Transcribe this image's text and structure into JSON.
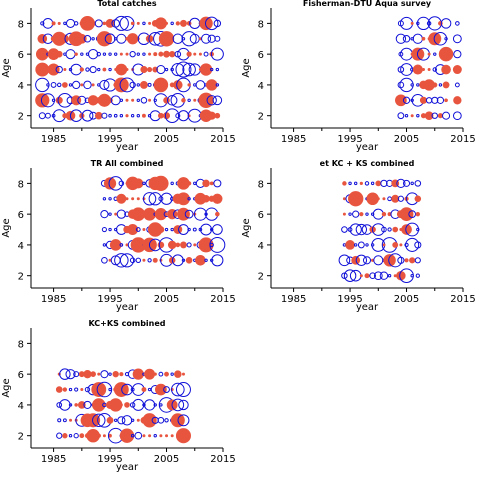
{
  "colors": {
    "positive": "#e8553f",
    "negative": "#1010d8",
    "axis": "#000000"
  },
  "chart_data": [
    {
      "type": "scatter",
      "subtype": "bubble-residuals",
      "title": "Total catches",
      "xlabel": "year",
      "ylabel": "Age",
      "xlim": [
        1981,
        2015
      ],
      "ylim": [
        1.2,
        9.0
      ],
      "xticks": [
        1985,
        1995,
        2005,
        2015
      ],
      "yticks": [
        2,
        4,
        6,
        8
      ],
      "years": [
        1983,
        2014
      ],
      "ages": [
        2,
        8
      ],
      "seed": 11
    },
    {
      "type": "scatter",
      "subtype": "bubble-residuals",
      "title": "Fisherman-DTU Aqua survey",
      "xlabel": "year",
      "ylabel": "Age",
      "xlim": [
        1981,
        2015
      ],
      "ylim": [
        1.2,
        9.0
      ],
      "xticks": [
        1985,
        1995,
        2005,
        2015
      ],
      "yticks": [
        2,
        4,
        6,
        8
      ],
      "years": [
        2004,
        2012
      ],
      "ages": [
        2,
        8
      ],
      "seed": 23,
      "extra_column_year": 2014
    },
    {
      "type": "scatter",
      "subtype": "bubble-residuals",
      "title": "TR All combined",
      "xlabel": "year",
      "ylabel": "Age",
      "xlim": [
        1981,
        2015
      ],
      "ylim": [
        1.2,
        9.0
      ],
      "xticks": [
        1985,
        1995,
        2005,
        2015
      ],
      "yticks": [
        2,
        4,
        6,
        8
      ],
      "years": [
        1994,
        2014
      ],
      "ages": [
        3,
        8
      ],
      "seed": 37
    },
    {
      "type": "scatter",
      "subtype": "bubble-residuals",
      "title": "et KC + KS combined",
      "xlabel": "year",
      "ylabel": "Age",
      "xlim": [
        1981,
        2015
      ],
      "ylim": [
        1.2,
        9.0
      ],
      "xticks": [
        1985,
        1995,
        2005,
        2015
      ],
      "yticks": [
        2,
        4,
        6,
        8
      ],
      "years": [
        1994,
        2007
      ],
      "ages": [
        2,
        8
      ],
      "seed": 53
    },
    {
      "type": "scatter",
      "subtype": "bubble-residuals",
      "title": "KC+KS combined",
      "xlabel": "year",
      "ylabel": "Age",
      "xlim": [
        1981,
        2015
      ],
      "ylim": [
        1.2,
        9.0
      ],
      "xticks": [
        1985,
        1995,
        2005,
        2015
      ],
      "yticks": [
        2,
        4,
        6,
        8
      ],
      "years": [
        1986,
        2008
      ],
      "ages": [
        2,
        6
      ],
      "seed": 71
    }
  ]
}
